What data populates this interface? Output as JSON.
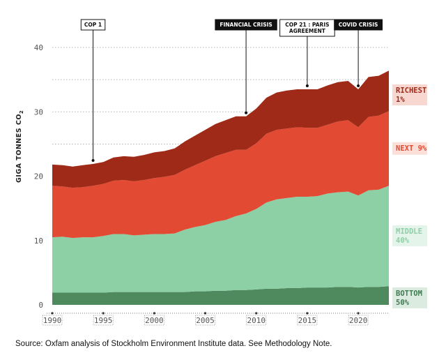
{
  "chart_data": {
    "type": "area",
    "stacked": true,
    "ylabel_main": "GIGA TONNES CO",
    "ylabel_sub": "2",
    "ylim": [
      0,
      40
    ],
    "yticks": [
      0,
      10,
      20,
      30,
      40
    ],
    "xlim": [
      1990,
      2023
    ],
    "xticks": [
      1990,
      1995,
      2000,
      2005,
      2010,
      2015,
      2020
    ],
    "grid": true,
    "x": [
      1990,
      1991,
      1992,
      1993,
      1994,
      1995,
      1996,
      1997,
      1998,
      1999,
      2000,
      2001,
      2002,
      2003,
      2004,
      2005,
      2006,
      2007,
      2008,
      2009,
      2010,
      2011,
      2012,
      2013,
      2014,
      2015,
      2016,
      2017,
      2018,
      2019,
      2020,
      2021,
      2022,
      2023
    ],
    "series": [
      {
        "name": "BOTTOM 50%",
        "color": "#4e8a5e",
        "values": [
          1.9,
          1.9,
          1.9,
          1.9,
          1.9,
          1.9,
          2.0,
          2.0,
          2.0,
          2.0,
          2.0,
          2.0,
          2.0,
          2.0,
          2.1,
          2.1,
          2.2,
          2.2,
          2.3,
          2.3,
          2.4,
          2.5,
          2.5,
          2.6,
          2.6,
          2.7,
          2.7,
          2.7,
          2.8,
          2.8,
          2.7,
          2.8,
          2.8,
          2.9
        ]
      },
      {
        "name": "MIDDLE 40%",
        "color": "#8ed0a6",
        "values": [
          8.6,
          8.7,
          8.5,
          8.6,
          8.6,
          8.8,
          9.0,
          9.0,
          8.8,
          8.9,
          9.0,
          9.0,
          9.1,
          9.7,
          10.0,
          10.3,
          10.7,
          11.0,
          11.5,
          11.9,
          12.5,
          13.4,
          13.9,
          14.0,
          14.2,
          14.1,
          14.2,
          14.6,
          14.7,
          14.8,
          14.3,
          15.0,
          15.1,
          15.6
        ]
      },
      {
        "name": "NEXT 9%",
        "color": "#e24a33",
        "values": [
          8.0,
          7.8,
          7.8,
          7.8,
          8.0,
          8.1,
          8.3,
          8.4,
          8.4,
          8.5,
          8.7,
          8.9,
          9.1,
          9.3,
          9.6,
          10.0,
          10.2,
          10.4,
          10.3,
          9.9,
          10.2,
          10.7,
          10.8,
          10.8,
          10.8,
          10.7,
          10.6,
          10.7,
          11.0,
          11.1,
          10.6,
          11.4,
          11.5,
          11.6
        ]
      },
      {
        "name": "RICHEST 1%",
        "color": "#9e2a17",
        "values": [
          3.3,
          3.3,
          3.3,
          3.4,
          3.4,
          3.4,
          3.6,
          3.7,
          3.8,
          3.9,
          4.0,
          4.0,
          4.1,
          4.4,
          4.6,
          4.8,
          5.0,
          5.1,
          5.2,
          5.2,
          5.4,
          5.6,
          5.8,
          5.9,
          5.9,
          6.0,
          6.0,
          6.1,
          6.1,
          6.1,
          5.9,
          6.2,
          6.2,
          6.3
        ]
      }
    ],
    "legend": [
      {
        "line1": "RICHEST",
        "line2": "1%",
        "color": "#9e2a17",
        "bg": "#f7d7d0"
      },
      {
        "line1": "NEXT 9%",
        "line2": "",
        "color": "#e24a33",
        "bg": "#fbe0da"
      },
      {
        "line1": "MIDDLE",
        "line2": "40%",
        "color": "#8ed0a6",
        "bg": "#e4f4ea"
      },
      {
        "line1": "BOTTOM",
        "line2": "50%",
        "color": "#3f7a50",
        "bg": "#dcebe0"
      }
    ],
    "annotations": [
      {
        "year": 1994,
        "lines": [
          "COP 1"
        ],
        "style": "light"
      },
      {
        "year": 2009,
        "lines": [
          "FINANCIAL CRISIS"
        ],
        "style": "dark"
      },
      {
        "year": 2015,
        "lines": [
          "COP 21 : PARIS",
          "AGREEMENT"
        ],
        "style": "light"
      },
      {
        "year": 2020,
        "lines": [
          "COVID CRISIS"
        ],
        "style": "dark"
      }
    ]
  },
  "source_note": "Source: Oxfam analysis of Stockholm Environment Institute data. See Methodology Note."
}
